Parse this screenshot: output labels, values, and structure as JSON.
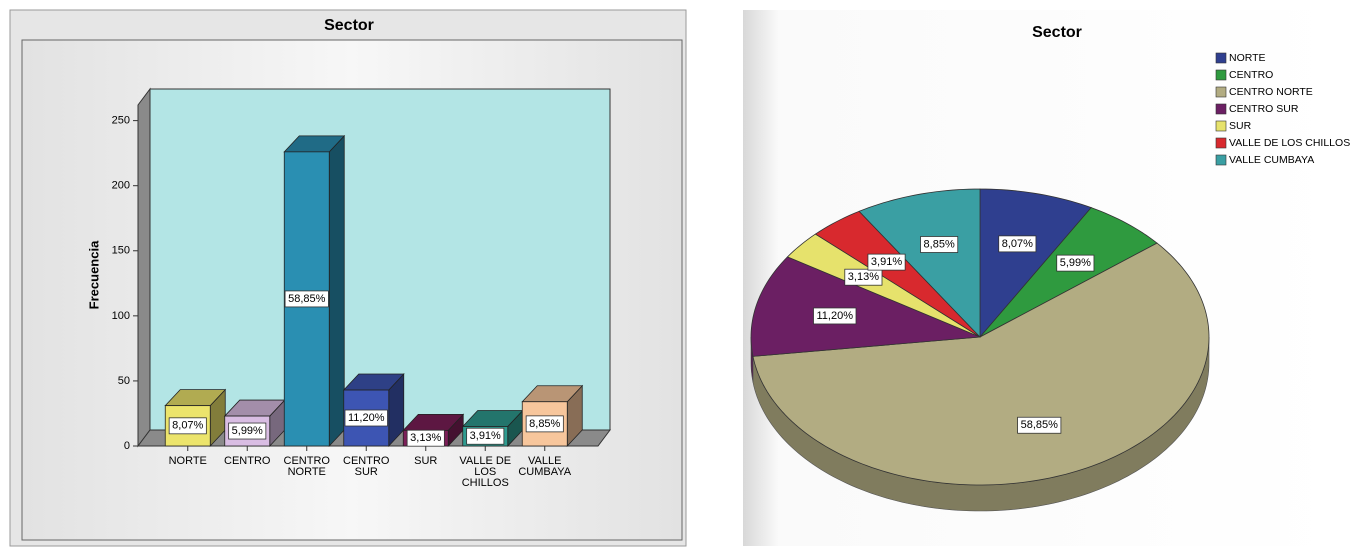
{
  "chart_data": [
    {
      "type": "bar",
      "title": "Sector",
      "y_label": "Frecuencia",
      "categories": [
        "NORTE",
        "CENTRO",
        "CENTRO NORTE",
        "CENTRO SUR",
        "SUR",
        "VALLE DE LOS CHILLOS",
        "VALLE CUMBAYA"
      ],
      "values": [
        31,
        23,
        226,
        43,
        12,
        15,
        34
      ],
      "labels": [
        "8,07%",
        "5,99%",
        "58,85%",
        "11,20%",
        "3,13%",
        "3,91%",
        "8,85%"
      ],
      "colors": [
        "#ece46c",
        "#d9bde3",
        "#2a8fb2",
        "#3d55b3",
        "#7c1f58",
        "#2f9c90",
        "#f7c69c"
      ],
      "ylim": [
        0,
        262
      ],
      "yticks": [
        0,
        50,
        100,
        150,
        200,
        250
      ]
    },
    {
      "type": "pie",
      "title": "Sector",
      "categories": [
        "NORTE",
        "CENTRO",
        "CENTRO NORTE",
        "CENTRO SUR",
        "SUR",
        "VALLE DE LOS CHILLOS",
        "VALLE CUMBAYA"
      ],
      "values": [
        8.07,
        5.99,
        58.85,
        11.2,
        3.13,
        3.91,
        8.85
      ],
      "value_labels": [
        "8,07%",
        "5,99%",
        "58,85%",
        "11,20%",
        "3,13%",
        "3,91%",
        "8,85%"
      ],
      "colors": [
        "#2f3f8f",
        "#2f9a3f",
        "#b2ac82",
        "#6b1f63",
        "#e6e26c",
        "#d8292e",
        "#3a9fa3"
      ],
      "legend": "upper right"
    }
  ]
}
